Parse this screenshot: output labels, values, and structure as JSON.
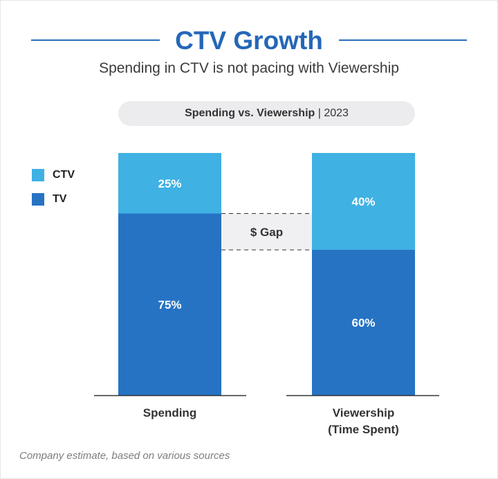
{
  "header": {
    "title": "CTV Growth",
    "subtitle": "Spending in CTV is not pacing with Viewership",
    "pill_bold": "Spending vs. Viewership",
    "pill_rest": " | 2023"
  },
  "legend": [
    {
      "label": "CTV",
      "color": "#3fb1e3"
    },
    {
      "label": "TV",
      "color": "#2673c4"
    }
  ],
  "gap_label": "$ Gap",
  "source": "Company estimate, based on various sources",
  "chart_data": {
    "type": "bar",
    "stacked": true,
    "unit": "%",
    "categories": [
      "Spending",
      "Viewership\n(Time Spent)"
    ],
    "series": [
      {
        "name": "TV",
        "values": [
          75,
          60
        ],
        "color": "#2673c4"
      },
      {
        "name": "CTV",
        "values": [
          25,
          40
        ],
        "color": "#3fb1e3"
      }
    ],
    "ylim": [
      0,
      100
    ],
    "annotation": "$ Gap",
    "legend_position": "left"
  }
}
